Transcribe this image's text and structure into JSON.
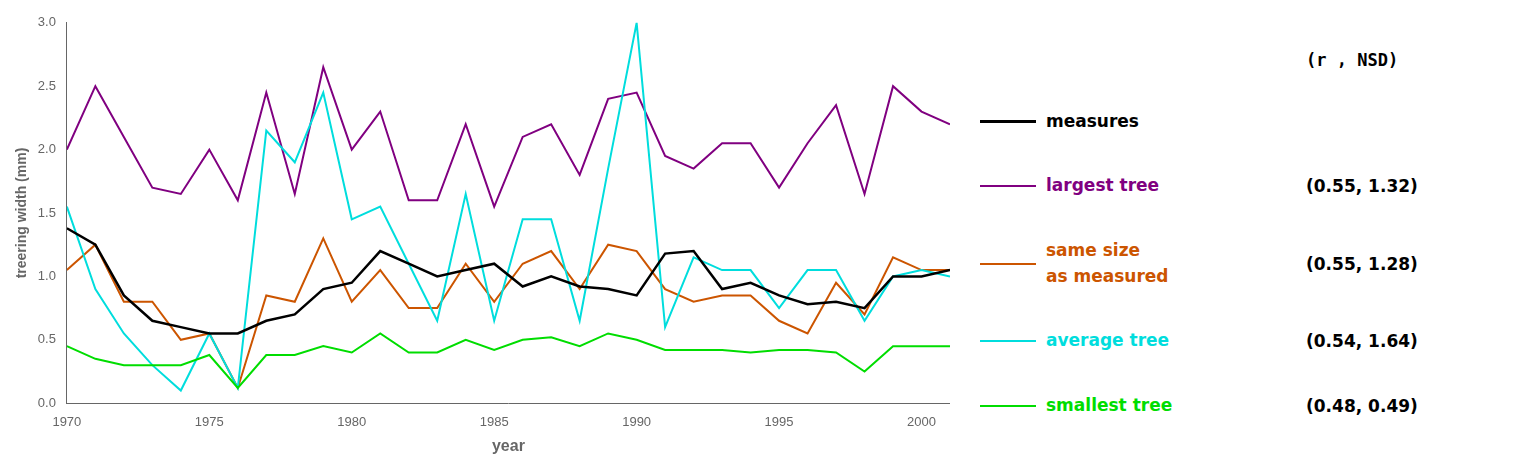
{
  "chart_data": {
    "type": "line",
    "x": [
      1970,
      1971,
      1972,
      1973,
      1974,
      1975,
      1976,
      1977,
      1978,
      1979,
      1980,
      1981,
      1982,
      1983,
      1984,
      1985,
      1986,
      1987,
      1988,
      1989,
      1990,
      1991,
      1992,
      1993,
      1994,
      1995,
      1996,
      1997,
      1998,
      1999,
      2000,
      2001
    ],
    "series": [
      {
        "name": "measures",
        "color": "#000000",
        "values": [
          1.38,
          1.25,
          0.85,
          0.65,
          0.6,
          0.55,
          0.55,
          0.65,
          0.7,
          0.9,
          0.95,
          1.2,
          1.1,
          1.0,
          1.05,
          1.1,
          0.92,
          1.0,
          0.92,
          0.9,
          0.85,
          1.18,
          1.2,
          0.9,
          0.95,
          0.85,
          0.78,
          0.8,
          0.75,
          1.0,
          1.0,
          1.05
        ]
      },
      {
        "name": "largest tree",
        "color": "#800080",
        "annotation": "(0.55, 1.32)",
        "values": [
          2.0,
          2.5,
          2.1,
          1.7,
          1.65,
          2.0,
          1.6,
          2.45,
          1.65,
          2.65,
          2.0,
          2.3,
          1.6,
          1.6,
          2.2,
          1.55,
          2.1,
          2.2,
          1.8,
          2.4,
          2.45,
          1.95,
          1.85,
          2.05,
          2.05,
          1.7,
          2.05,
          2.35,
          1.65,
          2.5,
          2.3,
          2.2
        ]
      },
      {
        "name": "same size\nas measured",
        "color": "#cc5500",
        "annotation": "(0.55, 1.28)",
        "values": [
          1.05,
          1.25,
          0.8,
          0.8,
          0.5,
          0.55,
          0.12,
          0.85,
          0.8,
          1.3,
          0.8,
          1.05,
          0.75,
          0.75,
          1.1,
          0.8,
          1.1,
          1.2,
          0.9,
          1.25,
          1.2,
          0.9,
          0.8,
          0.85,
          0.85,
          0.65,
          0.55,
          0.95,
          0.7,
          1.15,
          1.05,
          1.05
        ]
      },
      {
        "name": "average tree",
        "color": "#00dddd",
        "annotation": "(0.54, 1.64)",
        "values": [
          1.55,
          0.9,
          0.55,
          0.3,
          0.1,
          0.55,
          0.12,
          2.15,
          1.9,
          2.45,
          1.45,
          1.55,
          1.1,
          0.65,
          1.65,
          0.65,
          1.45,
          1.45,
          0.65,
          1.85,
          3.0,
          0.6,
          1.15,
          1.05,
          1.05,
          0.75,
          1.05,
          1.05,
          0.65,
          1.0,
          1.05,
          1.0
        ]
      },
      {
        "name": "smallest tree",
        "color": "#00dd00",
        "annotation": "(0.48, 0.49)",
        "values": [
          0.45,
          0.35,
          0.3,
          0.3,
          0.3,
          0.38,
          0.12,
          0.38,
          0.38,
          0.45,
          0.4,
          0.55,
          0.4,
          0.4,
          0.5,
          0.42,
          0.5,
          0.52,
          0.45,
          0.55,
          0.5,
          0.42,
          0.42,
          0.42,
          0.4,
          0.42,
          0.42,
          0.4,
          0.25,
          0.45,
          0.45,
          0.45
        ]
      }
    ],
    "legend_header": "(r , NSD)",
    "xlabel": "year",
    "ylabel": "treering width (mm)",
    "xlim": [
      1970,
      2001
    ],
    "ylim": [
      0,
      3
    ],
    "xticks": [
      1970,
      1975,
      1980,
      1985,
      1990,
      1995,
      2000
    ],
    "yticks": [
      {
        "value": 0,
        "label": "0.0"
      },
      0.5,
      {
        "value": 1.0,
        "label": "1.0"
      },
      1.5,
      {
        "value": 2.0,
        "label": "2.0"
      },
      2.5,
      {
        "value": 3.0,
        "label": "3.0"
      }
    ],
    "grid": false,
    "legend": "right"
  }
}
